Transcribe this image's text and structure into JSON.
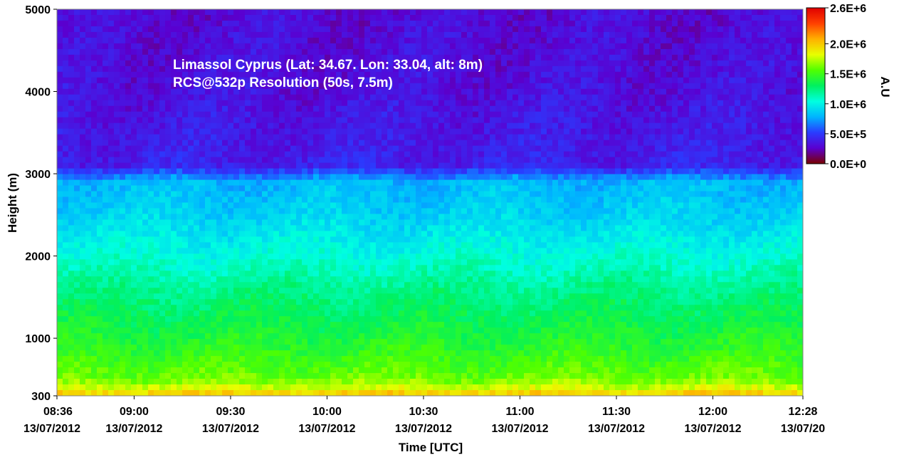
{
  "chart_data": {
    "type": "heatmap",
    "annotation_lines": [
      "Limassol Cyprus (Lat: 34.67. Lon: 33.04, alt: 8m)",
      "RCS@532p Resolution (50s, 7.5m)"
    ],
    "xlabel": "Time [UTC]",
    "ylabel": "Height (m)",
    "x_range_minutes_utc": [
      516,
      748
    ],
    "ylim": [
      300,
      5000
    ],
    "x_ticks": [
      {
        "minute": 516,
        "time": "08:36",
        "date": "13/07/2012"
      },
      {
        "minute": 540,
        "time": "09:00",
        "date": "13/07/2012"
      },
      {
        "minute": 570,
        "time": "09:30",
        "date": "13/07/2012"
      },
      {
        "minute": 600,
        "time": "10:00",
        "date": "13/07/2012"
      },
      {
        "minute": 630,
        "time": "10:30",
        "date": "13/07/2012"
      },
      {
        "minute": 660,
        "time": "11:00",
        "date": "13/07/2012"
      },
      {
        "minute": 690,
        "time": "11:30",
        "date": "13/07/2012"
      },
      {
        "minute": 720,
        "time": "12:00",
        "date": "13/07/2012"
      },
      {
        "minute": 748,
        "time": "12:28",
        "date": "13/07/20"
      }
    ],
    "y_ticks": [
      {
        "value": 300,
        "label": "300"
      },
      {
        "value": 1000,
        "label": "1000"
      },
      {
        "value": 2000,
        "label": "2000"
      },
      {
        "value": 3000,
        "label": "3000"
      },
      {
        "value": 4000,
        "label": "4000"
      },
      {
        "value": 5000,
        "label": "5000"
      }
    ],
    "colorbar": {
      "label": "A.U",
      "range": [
        0,
        2600000
      ],
      "ticks": [
        {
          "value": 0,
          "label": "0.0E+0"
        },
        {
          "value": 500000,
          "label": "5.0E+5"
        },
        {
          "value": 1000000,
          "label": "1.0E+6"
        },
        {
          "value": 1500000,
          "label": "1.5E+6"
        },
        {
          "value": 2000000,
          "label": "2.0E+6"
        },
        {
          "value": 2600000,
          "label": "2.6E+6"
        }
      ],
      "colors": [
        "#7a0000",
        "#5a00d0",
        "#2a3cff",
        "#00b4ff",
        "#00ffe0",
        "#00f060",
        "#50ff00",
        "#e8ff00",
        "#ffb000",
        "#ff4000",
        "#e00000"
      ]
    },
    "profile": [
      {
        "height": 300,
        "value": 2050000
      },
      {
        "height": 400,
        "value": 1780000
      },
      {
        "height": 500,
        "value": 1620000
      },
      {
        "height": 700,
        "value": 1520000
      },
      {
        "height": 1000,
        "value": 1400000
      },
      {
        "height": 1500,
        "value": 1250000
      },
      {
        "height": 2000,
        "value": 1050000
      },
      {
        "height": 2500,
        "value": 880000
      },
      {
        "height": 2900,
        "value": 800000
      },
      {
        "height": 3100,
        "value": 400000
      },
      {
        "height": 4000,
        "value": 330000
      },
      {
        "height": 5000,
        "value": 300000
      }
    ],
    "grid": false
  }
}
